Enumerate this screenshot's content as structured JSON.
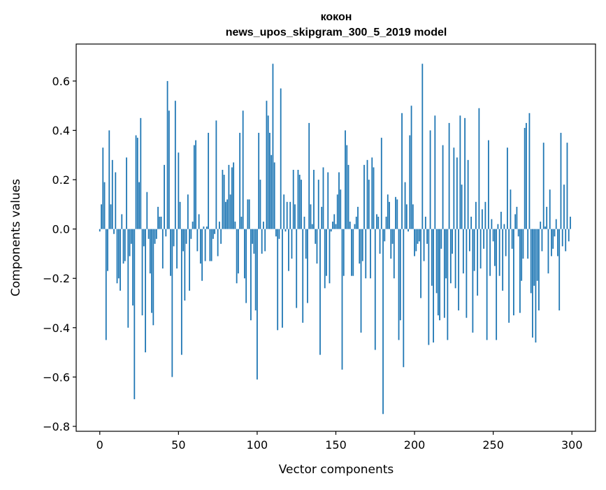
{
  "chart_data": {
    "type": "bar",
    "title_lines": [
      "кокон",
      "news_upos_skipgram_300_5_2019 model"
    ],
    "xlabel": "Vector components",
    "ylabel": "Components values",
    "xlim": [
      -15,
      315
    ],
    "ylim": [
      -0.82,
      0.75
    ],
    "xticks": [
      0,
      50,
      100,
      150,
      200,
      250,
      300
    ],
    "yticks": [
      -0.8,
      -0.6,
      -0.4,
      -0.2,
      0.0,
      0.2,
      0.4,
      0.6
    ],
    "ytick_labels": [
      "−0.8",
      "−0.6",
      "−0.4",
      "−0.2",
      "0.0",
      "0.2",
      "0.4",
      "0.6"
    ],
    "grid": false,
    "bar_color": "#1f77b4",
    "values": [
      -0.01,
      0.1,
      0.33,
      0.19,
      -0.45,
      -0.17,
      0.4,
      0.1,
      0.28,
      -0.02,
      0.23,
      -0.22,
      -0.2,
      -0.25,
      0.06,
      -0.14,
      -0.13,
      0.29,
      -0.4,
      -0.11,
      -0.06,
      -0.31,
      -0.69,
      0.38,
      0.37,
      0.19,
      0.45,
      -0.35,
      -0.07,
      -0.5,
      0.15,
      -0.04,
      -0.18,
      -0.34,
      -0.39,
      -0.06,
      -0.04,
      0.09,
      0.05,
      0.05,
      -0.16,
      0.26,
      -0.03,
      0.6,
      0.48,
      -0.19,
      -0.6,
      -0.07,
      0.52,
      -0.16,
      0.31,
      0.11,
      -0.51,
      -0.09,
      -0.29,
      -0.06,
      0.14,
      -0.25,
      -0.04,
      0.03,
      0.34,
      0.36,
      -0.09,
      0.06,
      -0.14,
      -0.21,
      0.01,
      -0.13,
      0.01,
      0.39,
      -0.13,
      -0.13,
      -0.04,
      -0.02,
      0.44,
      -0.11,
      0.03,
      -0.06,
      0.24,
      0.22,
      0.11,
      0.12,
      0.26,
      0.14,
      0.25,
      0.27,
      0.03,
      -0.22,
      -0.18,
      0.39,
      0.05,
      0.48,
      -0.2,
      -0.3,
      0.12,
      0.12,
      -0.37,
      -0.06,
      -0.1,
      -0.33,
      -0.61,
      0.39,
      0.2,
      -0.1,
      0.03,
      -0.09,
      0.52,
      0.46,
      0.39,
      0.3,
      0.67,
      0.27,
      -0.03,
      -0.41,
      -0.04,
      0.57,
      -0.4,
      0.14,
      -0.01,
      0.11,
      -0.17,
      0.11,
      -0.12,
      0.24,
      0.1,
      -0.32,
      0.24,
      0.22,
      0.2,
      -0.38,
      0.05,
      -0.12,
      -0.3,
      0.43,
      0.1,
      0.02,
      0.24,
      -0.06,
      -0.14,
      0.2,
      -0.51,
      0.09,
      0.25,
      -0.24,
      -0.19,
      0.23,
      -0.22,
      -0.01,
      0.03,
      0.06,
      0.02,
      0.14,
      0.23,
      0.16,
      -0.57,
      -0.19,
      0.4,
      0.34,
      0.26,
      0.03,
      -0.19,
      -0.19,
      0.02,
      0.05,
      0.09,
      -0.14,
      -0.42,
      -0.13,
      0.26,
      -0.2,
      0.28,
      0.2,
      -0.2,
      0.29,
      0.25,
      -0.49,
      0.06,
      0.05,
      -0.1,
      0.37,
      -0.75,
      -0.05,
      0.05,
      0.14,
      0.11,
      -0.12,
      -0.06,
      -0.2,
      0.13,
      0.12,
      -0.45,
      -0.37,
      0.47,
      -0.56,
      0.19,
      0.1,
      -0.01,
      0.38,
      0.5,
      0.1,
      -0.11,
      -0.09,
      -0.06,
      -0.05,
      -0.28,
      0.67,
      -0.13,
      0.05,
      -0.06,
      -0.47,
      0.4,
      -0.23,
      -0.46,
      0.46,
      -0.26,
      -0.35,
      -0.37,
      -0.08,
      0.34,
      -0.36,
      -0.2,
      -0.45,
      0.43,
      -0.22,
      -0.1,
      0.33,
      -0.24,
      0.29,
      -0.33,
      0.46,
      0.18,
      -0.18,
      0.45,
      -0.36,
      0.28,
      -0.09,
      0.05,
      -0.42,
      -0.17,
      0.11,
      -0.27,
      0.49,
      -0.16,
      0.08,
      -0.08,
      0.11,
      -0.45,
      0.36,
      -0.19,
      0.04,
      -0.05,
      -0.15,
      -0.45,
      0.02,
      -0.19,
      0.07,
      -0.25,
      0.02,
      -0.11,
      0.33,
      -0.38,
      0.16,
      -0.08,
      -0.35,
      0.06,
      0.09,
      -0.03,
      -0.34,
      -0.21,
      -0.12,
      0.41,
      0.43,
      -0.12,
      0.47,
      -0.26,
      -0.44,
      -0.23,
      -0.46,
      -0.21,
      -0.33,
      0.03,
      -0.09,
      0.35,
      0.01,
      0.09,
      -0.18,
      0.16,
      -0.11,
      -0.08,
      -0.03,
      0.04,
      -0.11,
      -0.33,
      0.39,
      -0.07,
      0.18,
      -0.09,
      0.35,
      -0.05,
      0.05
    ]
  }
}
